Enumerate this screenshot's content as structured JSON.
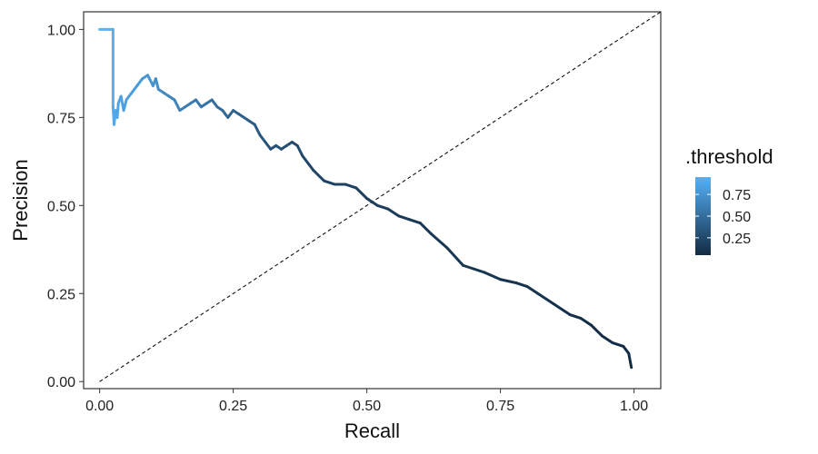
{
  "chart_data": {
    "type": "line",
    "title": "",
    "xlabel": "Recall",
    "ylabel": "Precision",
    "xlim": [
      -0.03,
      1.05
    ],
    "ylim": [
      -0.02,
      1.05
    ],
    "x_ticks": [
      0.0,
      0.25,
      0.5,
      0.75,
      1.0
    ],
    "x_tick_labels": [
      "0.00",
      "0.25",
      "0.50",
      "0.75",
      "1.00"
    ],
    "y_ticks": [
      0.0,
      0.25,
      0.5,
      0.75,
      1.0
    ],
    "y_tick_labels": [
      "0.00",
      "0.25",
      "0.50",
      "0.75",
      "1.00"
    ],
    "grid": false,
    "reference_line": {
      "style": "dashed",
      "from": [
        0,
        0
      ],
      "to": [
        1.05,
        1.05
      ],
      "color": "#111111"
    },
    "legend": {
      "title": ".threshold",
      "placement": "right",
      "type": "colorbar",
      "range": [
        0.05,
        0.95
      ],
      "ticks": [
        0.75,
        0.5,
        0.25
      ],
      "tick_labels": [
        "0.75",
        "0.50",
        "0.25"
      ],
      "color_low": "#132b43",
      "color_high": "#56b1f7"
    },
    "series": [
      {
        "x": [
          0.0,
          0.025,
          0.025,
          0.027,
          0.03,
          0.033,
          0.035,
          0.04,
          0.045,
          0.05,
          0.06,
          0.07,
          0.08,
          0.09,
          0.1,
          0.105,
          0.11,
          0.12,
          0.13,
          0.14,
          0.15,
          0.16,
          0.17,
          0.18,
          0.19,
          0.2,
          0.21,
          0.22,
          0.23,
          0.24,
          0.25,
          0.26,
          0.28,
          0.29,
          0.3,
          0.31,
          0.32,
          0.33,
          0.34,
          0.35,
          0.36,
          0.37,
          0.38,
          0.4,
          0.42,
          0.44,
          0.46,
          0.48,
          0.5,
          0.52,
          0.54,
          0.56,
          0.58,
          0.6,
          0.62,
          0.65,
          0.68,
          0.7,
          0.72,
          0.75,
          0.78,
          0.8,
          0.82,
          0.85,
          0.88,
          0.9,
          0.92,
          0.94,
          0.96,
          0.98,
          0.99,
          0.995
        ],
        "y": [
          1.0,
          1.0,
          0.78,
          0.73,
          0.77,
          0.75,
          0.79,
          0.81,
          0.77,
          0.8,
          0.82,
          0.84,
          0.86,
          0.87,
          0.84,
          0.86,
          0.83,
          0.82,
          0.81,
          0.8,
          0.77,
          0.78,
          0.79,
          0.8,
          0.78,
          0.79,
          0.8,
          0.78,
          0.77,
          0.75,
          0.77,
          0.76,
          0.74,
          0.73,
          0.7,
          0.68,
          0.66,
          0.67,
          0.66,
          0.67,
          0.68,
          0.67,
          0.64,
          0.6,
          0.57,
          0.56,
          0.56,
          0.55,
          0.52,
          0.5,
          0.49,
          0.47,
          0.46,
          0.45,
          0.42,
          0.38,
          0.33,
          0.32,
          0.31,
          0.29,
          0.28,
          0.27,
          0.25,
          0.22,
          0.19,
          0.18,
          0.16,
          0.13,
          0.11,
          0.1,
          0.08,
          0.04
        ],
        "threshold": [
          0.95,
          0.93,
          0.91,
          0.89,
          0.88,
          0.87,
          0.86,
          0.85,
          0.84,
          0.83,
          0.82,
          0.8,
          0.78,
          0.76,
          0.74,
          0.72,
          0.7,
          0.68,
          0.66,
          0.64,
          0.62,
          0.6,
          0.58,
          0.56,
          0.54,
          0.52,
          0.5,
          0.48,
          0.46,
          0.44,
          0.42,
          0.4,
          0.38,
          0.36,
          0.34,
          0.32,
          0.3,
          0.29,
          0.28,
          0.27,
          0.26,
          0.25,
          0.24,
          0.23,
          0.22,
          0.21,
          0.2,
          0.19,
          0.18,
          0.17,
          0.16,
          0.15,
          0.145,
          0.14,
          0.135,
          0.13,
          0.125,
          0.12,
          0.115,
          0.11,
          0.105,
          0.1,
          0.095,
          0.09,
          0.085,
          0.08,
          0.075,
          0.07,
          0.065,
          0.06,
          0.055,
          0.05
        ]
      }
    ]
  }
}
